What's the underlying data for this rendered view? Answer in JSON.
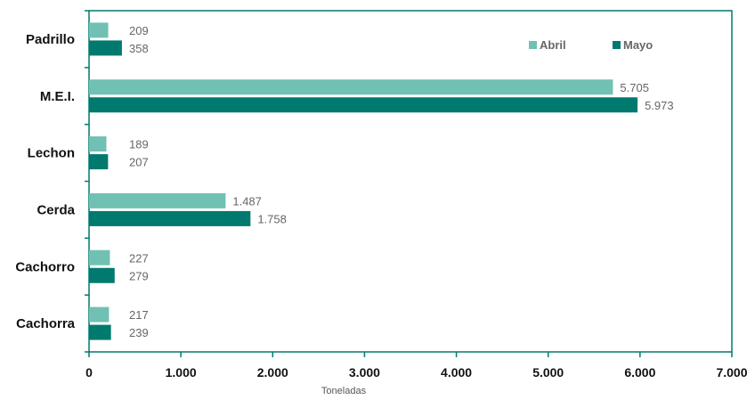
{
  "chart_data": {
    "type": "bar",
    "orientation": "horizontal",
    "categories": [
      "Padrillo",
      "M.E.I.",
      "Lechon",
      "Cerda",
      "Cachorro",
      "Cachorra"
    ],
    "series": [
      {
        "name": "Abril",
        "color": "#70c1b3",
        "values": [
          209,
          5705,
          189,
          1487,
          227,
          217
        ],
        "labels": [
          "209",
          "5.705",
          "189",
          "1.487",
          "227",
          "217"
        ]
      },
      {
        "name": "Mayo",
        "color": "#007a6e",
        "values": [
          358,
          5973,
          207,
          1758,
          279,
          239
        ],
        "labels": [
          "358",
          "5.973",
          "207",
          "1.758",
          "279",
          "239"
        ]
      }
    ],
    "xlabel": "Toneladas",
    "xlim": [
      0,
      7000
    ],
    "xticks": [
      0,
      1000,
      2000,
      3000,
      4000,
      5000,
      6000,
      7000
    ],
    "xtick_labels": [
      "0",
      "1.000",
      "2.000",
      "3.000",
      "4.000",
      "5.000",
      "6.000",
      "7.000"
    ],
    "legend_position": "top-right",
    "grid": false,
    "frame_color": "#007a6e"
  }
}
